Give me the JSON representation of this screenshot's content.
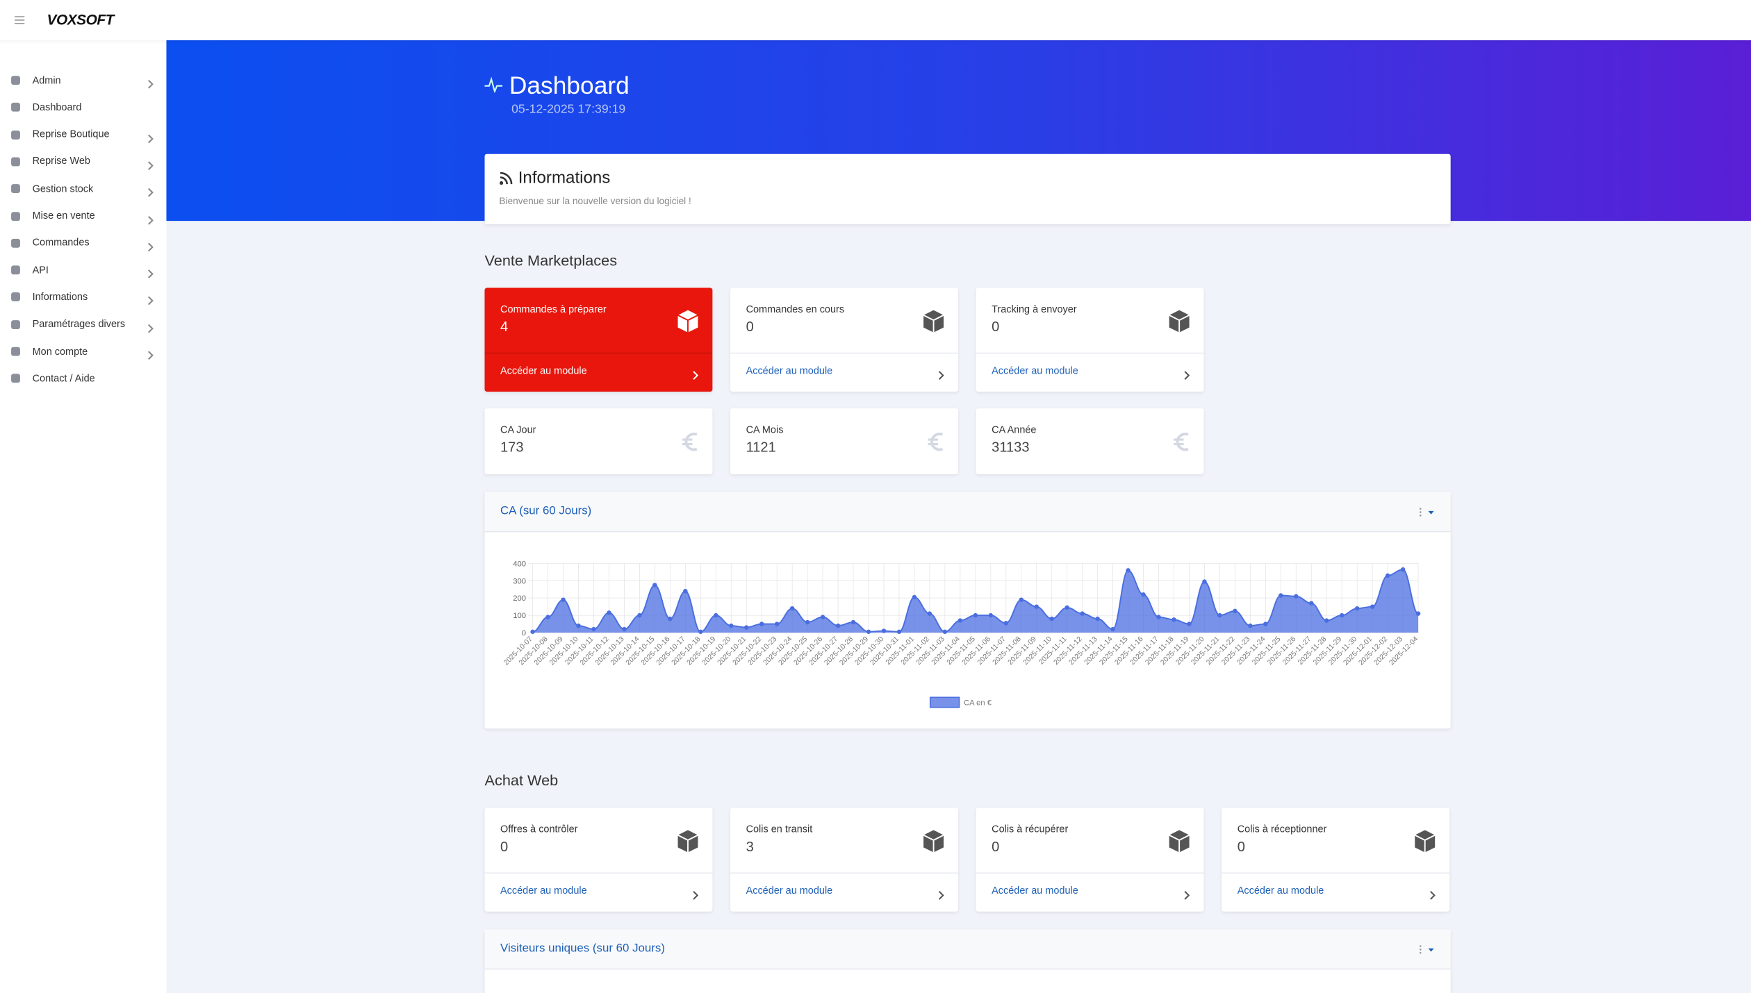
{
  "header": {
    "logo": "VOXSOFT"
  },
  "sidebar": {
    "items": [
      {
        "label": "Admin",
        "submenu": true
      },
      {
        "label": "Dashboard",
        "submenu": false
      },
      {
        "label": "Reprise Boutique",
        "submenu": true
      },
      {
        "label": "Reprise Web",
        "submenu": true
      },
      {
        "label": "Gestion stock",
        "submenu": true
      },
      {
        "label": "Mise en vente",
        "submenu": true
      },
      {
        "label": "Commandes",
        "submenu": true
      },
      {
        "label": "API",
        "submenu": true
      },
      {
        "label": "Informations",
        "submenu": true
      },
      {
        "label": "Paramétrages divers",
        "submenu": true
      },
      {
        "label": "Mon compte",
        "submenu": true
      },
      {
        "label": "Contact / Aide",
        "submenu": false
      }
    ]
  },
  "page": {
    "title": "Dashboard",
    "datetime": "05-12-2025 17:39:19"
  },
  "info": {
    "title": "Informations",
    "text": "Bienvenue sur la nouvelle version du logiciel !"
  },
  "marketplaces": {
    "title": "Vente Marketplaces",
    "modules": [
      {
        "label": "Commandes à préparer",
        "value": 4,
        "link": "Accéder au module",
        "highlight": true
      },
      {
        "label": "Commandes en cours",
        "value": 0,
        "link": "Accéder au module",
        "highlight": false
      },
      {
        "label": "Tracking à envoyer",
        "value": 0,
        "link": "Accéder au module",
        "highlight": false
      }
    ],
    "revenue": [
      {
        "label": "CA Jour",
        "value": 173
      },
      {
        "label": "CA Mois",
        "value": 1121
      },
      {
        "label": "CA Année",
        "value": 31133
      }
    ]
  },
  "revenue_chart": {
    "title": "CA (sur 60 Jours)"
  },
  "chart_data": {
    "type": "area",
    "x": [
      "2025-10-07",
      "2025-10-08",
      "2025-10-09",
      "2025-10-10",
      "2025-10-11",
      "2025-10-12",
      "2025-10-13",
      "2025-10-14",
      "2025-10-15",
      "2025-10-16",
      "2025-10-17",
      "2025-10-18",
      "2025-10-19",
      "2025-10-20",
      "2025-10-21",
      "2025-10-22",
      "2025-10-23",
      "2025-10-24",
      "2025-10-25",
      "2025-10-26",
      "2025-10-27",
      "2025-10-28",
      "2025-10-29",
      "2025-10-30",
      "2025-10-31",
      "2025-11-01",
      "2025-11-02",
      "2025-11-03",
      "2025-11-04",
      "2025-11-05",
      "2025-11-06",
      "2025-11-07",
      "2025-11-08",
      "2025-11-09",
      "2025-11-10",
      "2025-11-11",
      "2025-11-12",
      "2025-11-13",
      "2025-11-14",
      "2025-11-15",
      "2025-11-16",
      "2025-11-17",
      "2025-11-18",
      "2025-11-19",
      "2025-11-20",
      "2025-11-21",
      "2025-11-22",
      "2025-11-23",
      "2025-11-24",
      "2025-11-25",
      "2025-11-26",
      "2025-11-27",
      "2025-11-28",
      "2025-11-29",
      "2025-11-30",
      "2025-12-01",
      "2025-12-02",
      "2025-12-03",
      "2025-12-04"
    ],
    "series": [
      {
        "name": "CA en €",
        "color": "#4a6ee0",
        "values": [
          5,
          90,
          190,
          40,
          20,
          115,
          20,
          100,
          275,
          80,
          240,
          5,
          100,
          40,
          30,
          50,
          50,
          140,
          60,
          90,
          40,
          60,
          5,
          10,
          5,
          205,
          110,
          5,
          70,
          100,
          100,
          55,
          190,
          150,
          80,
          145,
          110,
          80,
          20,
          360,
          220,
          90,
          75,
          50,
          295,
          100,
          125,
          40,
          50,
          215,
          210,
          170,
          70,
          100,
          140,
          150,
          330,
          365,
          110
        ]
      }
    ],
    "ylim": [
      0,
      400
    ],
    "yticks": [
      0,
      100,
      200,
      300,
      400
    ],
    "grid": true,
    "legend": "bottom"
  },
  "achat_web": {
    "title": "Achat Web",
    "modules": [
      {
        "label": "Offres à contrôler",
        "value": 0,
        "link": "Accéder au module",
        "highlight": false
      },
      {
        "label": "Colis en transit",
        "value": 3,
        "link": "Accéder au module",
        "highlight": false
      },
      {
        "label": "Colis à récupérer",
        "value": 0,
        "link": "Accéder au module",
        "highlight": false
      },
      {
        "label": "Colis à réceptionner",
        "value": 0,
        "link": "Accéder au module",
        "highlight": false
      }
    ]
  },
  "visitors_chart": {
    "title": "Visiteurs uniques (sur 60 Jours)"
  }
}
